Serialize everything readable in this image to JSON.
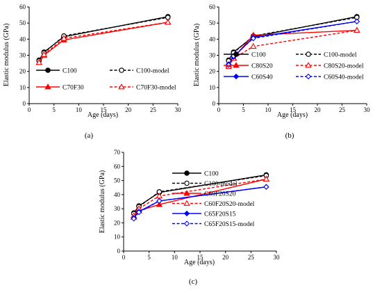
{
  "chart_data": [
    {
      "type": "line",
      "caption": "(a)",
      "xlabel": "Age (days)",
      "ylabel": "Elastic modulus (GPa)",
      "xlim": [
        0,
        30
      ],
      "ylim": [
        0,
        60
      ],
      "xticks": [
        0,
        5,
        10,
        15,
        20,
        25,
        30
      ],
      "yticks": [
        0,
        10,
        20,
        30,
        40,
        50,
        60
      ],
      "grid": false,
      "legend": {
        "placement": "bottom-inside",
        "columns": 2
      },
      "series": [
        {
          "name": "C100",
          "color": "#000000",
          "dash": "solid",
          "marker": "circle",
          "filled": true,
          "x": [
            2,
            3,
            7,
            28
          ],
          "y": [
            27,
            32,
            41.5,
            54
          ]
        },
        {
          "name": "C100-model",
          "color": "#000000",
          "dash": "dashed",
          "marker": "circle",
          "filled": false,
          "x": [
            2,
            3,
            7,
            28
          ],
          "y": [
            26.5,
            31.5,
            42,
            53.5
          ]
        },
        {
          "name": "C70F30",
          "color": "#ff0000",
          "dash": "solid",
          "marker": "triangle",
          "filled": true,
          "x": [
            2,
            3,
            7,
            28
          ],
          "y": [
            25.5,
            30,
            39.5,
            50.5
          ]
        },
        {
          "name": "C70F30-model",
          "color": "#ff0000",
          "dash": "dashed",
          "marker": "triangle",
          "filled": false,
          "x": [
            2,
            3,
            7,
            28
          ],
          "y": [
            25.5,
            30.5,
            40.5,
            50.5
          ]
        }
      ]
    },
    {
      "type": "line",
      "caption": "(b)",
      "xlabel": "Age (days)",
      "ylabel": "Elastic modulus (GPa)",
      "xlim": [
        0,
        30
      ],
      "ylim": [
        0,
        60
      ],
      "xticks": [
        0,
        5,
        10,
        15,
        20,
        25,
        30
      ],
      "yticks": [
        0,
        10,
        20,
        30,
        40,
        50,
        60
      ],
      "grid": false,
      "legend": {
        "placement": "bottom-inside",
        "columns": 2
      },
      "series": [
        {
          "name": "C100",
          "color": "#000000",
          "dash": "solid",
          "marker": "circle",
          "filled": true,
          "x": [
            2,
            3,
            7,
            28
          ],
          "y": [
            27,
            32,
            41.5,
            54
          ]
        },
        {
          "name": "C100-model",
          "color": "#000000",
          "dash": "dashed",
          "marker": "circle",
          "filled": false,
          "x": [
            2,
            3,
            7,
            28
          ],
          "y": [
            26.5,
            31.5,
            42,
            53.5
          ]
        },
        {
          "name": "C80S20",
          "color": "#ff0000",
          "dash": "solid",
          "marker": "triangle",
          "filled": true,
          "x": [
            2,
            3,
            7,
            28
          ],
          "y": [
            24,
            28.5,
            42.5,
            45.5
          ]
        },
        {
          "name": "C80S20-model",
          "color": "#ff0000",
          "dash": "dashed",
          "marker": "triangle",
          "filled": false,
          "x": [
            2,
            3,
            7,
            28
          ],
          "y": [
            23,
            28,
            35.5,
            45.5
          ]
        },
        {
          "name": "C60S40",
          "color": "#0000ff",
          "dash": "solid",
          "marker": "diamond",
          "filled": true,
          "x": [
            2,
            3,
            7,
            28
          ],
          "y": [
            24.5,
            29,
            41,
            51
          ]
        },
        {
          "name": "C60S40-model",
          "color": "#0000ff",
          "dash": "dashed",
          "marker": "diamond",
          "filled": false,
          "x": [
            2,
            3,
            7,
            28
          ],
          "y": [
            24,
            29.5,
            40.5,
            51
          ]
        }
      ]
    },
    {
      "type": "line",
      "caption": "(c)",
      "xlabel": "Age (days)",
      "ylabel": "Elastic modulus (GPa)",
      "xlim": [
        0,
        30
      ],
      "ylim": [
        0,
        70
      ],
      "xticks": [
        0,
        5,
        10,
        15,
        20,
        25,
        30
      ],
      "yticks": [
        0,
        10,
        20,
        30,
        40,
        50,
        60,
        70
      ],
      "grid": false,
      "legend": {
        "placement": "right-inside",
        "columns": 1
      },
      "series": [
        {
          "name": "C100",
          "color": "#000000",
          "dash": "solid",
          "marker": "circle",
          "filled": true,
          "x": [
            2,
            3,
            7,
            28
          ],
          "y": [
            27,
            32,
            41.5,
            54
          ]
        },
        {
          "name": "C100-model",
          "color": "#000000",
          "dash": "dashed",
          "marker": "circle",
          "filled": false,
          "x": [
            2,
            3,
            7,
            28
          ],
          "y": [
            26.5,
            31.5,
            42,
            53.5
          ]
        },
        {
          "name": "C60F20S20",
          "color": "#ff0000",
          "dash": "solid",
          "marker": "triangle",
          "filled": true,
          "x": [
            2,
            3,
            7,
            28
          ],
          "y": [
            24,
            28.5,
            33,
            51
          ]
        },
        {
          "name": "C60F20S20-model",
          "color": "#ff0000",
          "dash": "dashed",
          "marker": "triangle",
          "filled": false,
          "x": [
            2,
            3,
            7,
            28
          ],
          "y": [
            25,
            30,
            39,
            51
          ]
        },
        {
          "name": "C65F20S15",
          "color": "#0000ff",
          "dash": "solid",
          "marker": "diamond",
          "filled": true,
          "x": [
            2,
            3,
            7,
            28
          ],
          "y": [
            23.5,
            28,
            35.5,
            45.5
          ]
        },
        {
          "name": "C65F20S15-model",
          "color": "#0000ff",
          "dash": "dashed",
          "marker": "diamond",
          "filled": false,
          "x": [
            2,
            3,
            7,
            28
          ],
          "y": [
            23,
            27.5,
            35.5,
            45.5
          ]
        }
      ]
    }
  ]
}
